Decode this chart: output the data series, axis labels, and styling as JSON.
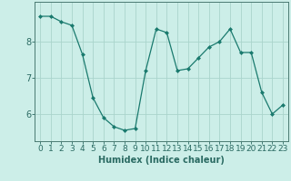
{
  "x": [
    0,
    1,
    2,
    3,
    4,
    5,
    6,
    7,
    8,
    9,
    10,
    11,
    12,
    13,
    14,
    15,
    16,
    17,
    18,
    19,
    20,
    21,
    22,
    23
  ],
  "y": [
    8.7,
    8.7,
    8.55,
    8.45,
    7.65,
    6.45,
    5.9,
    5.65,
    5.55,
    5.6,
    7.2,
    8.35,
    8.25,
    7.2,
    7.25,
    7.55,
    7.85,
    8.0,
    8.35,
    7.7,
    7.7,
    6.6,
    6.0,
    6.25
  ],
  "xlabel": "Humidex (Indice chaleur)",
  "xlim": [
    -0.5,
    23.5
  ],
  "ylim": [
    5.25,
    9.1
  ],
  "yticks": [
    6,
    7,
    8
  ],
  "xticks": [
    0,
    1,
    2,
    3,
    4,
    5,
    6,
    7,
    8,
    9,
    10,
    11,
    12,
    13,
    14,
    15,
    16,
    17,
    18,
    19,
    20,
    21,
    22,
    23
  ],
  "line_color": "#1a7a6e",
  "marker": "D",
  "marker_size": 2.0,
  "bg_color": "#cceee8",
  "grid_color": "#aad4cc",
  "axis_color": "#4a7a72",
  "tick_color": "#2a6a62",
  "label_fontsize": 7,
  "tick_fontsize": 6.5
}
